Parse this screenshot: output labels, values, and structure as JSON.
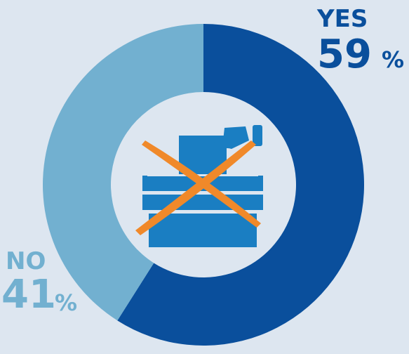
{
  "chart_data": {
    "type": "pie",
    "donut": true,
    "categories": [
      "YES",
      "NO"
    ],
    "values": [
      59,
      41
    ],
    "unit": "%",
    "colors": [
      "#0a4f9c",
      "#72b0d0"
    ],
    "start_angle": 0,
    "direction": "clockwise"
  }
}
